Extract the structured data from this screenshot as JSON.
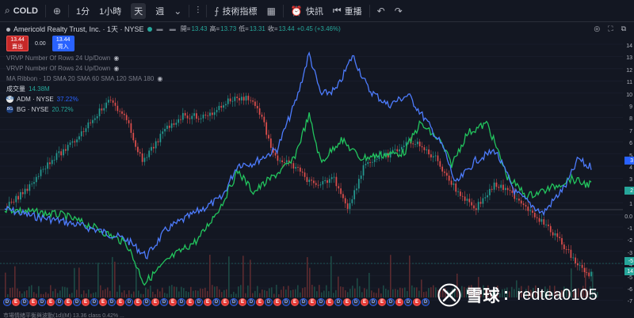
{
  "toolbar": {
    "symbol": "COLD",
    "interval_1m": "1分",
    "interval_1h": "1小時",
    "interval_1d": "天",
    "interval_1w": "週",
    "indicators": "技術指標",
    "snapshot": "快訊",
    "replay": "重播"
  },
  "legend": {
    "title": "Americold Realty Trust, Inc. · 1天 · NYSE",
    "open_label": "開=",
    "open": "13.43",
    "high_label": "高=",
    "high": "13.73",
    "low_label": "低=",
    "low": "13.31",
    "close_label": "收=",
    "close": "13.44",
    "change": "+0.45 (+3.46%)",
    "sell_price": "13.44",
    "sell_label": "賣出",
    "spread": "0.00",
    "buy_price": "13.44",
    "buy_label": "買入",
    "vrvp1": "VRVP Number Of Rows 24 Up/Down",
    "vrvp2": "VRVP Number Of Rows 24 Up/Down",
    "ma_ribbon": "MA Ribbon · 1D SMA 20 SMA 60 SMA 120 SMA 180",
    "volume_label": "成交量",
    "volume": "14.38M",
    "compare": [
      {
        "logo": "ADM",
        "name": "ADM · NYSE",
        "value": "37.22%"
      },
      {
        "logo": "BG",
        "name": "BG · NYSE",
        "value": "20.72%"
      }
    ]
  },
  "scale": {
    "labels": [
      "14",
      "13",
      "12",
      "11",
      "10",
      "9",
      "8",
      "7",
      "6",
      "5",
      "4",
      "3",
      "2",
      "1",
      "0.0",
      "-1",
      "-2",
      "-3",
      "-4",
      "-5",
      "-6",
      "-7"
    ],
    "tags": [
      {
        "text": "3",
        "color": "#2962ff"
      },
      {
        "text": "2",
        "color": "#26a69a"
      },
      {
        "text": "-5",
        "color": "#26a69a"
      },
      {
        "text": "14",
        "color": "#26a69a"
      }
    ]
  },
  "events": [
    "D",
    "E",
    "D",
    "E",
    "D",
    "E",
    "D",
    "E",
    "D",
    "E",
    "D",
    "E",
    "D",
    "E",
    "D",
    "E",
    "D",
    "E",
    "D",
    "E",
    "D",
    "E",
    "D",
    "E",
    "D",
    "E",
    "D",
    "E",
    "D",
    "E",
    "D",
    "E",
    "D",
    "E",
    "D",
    "E",
    "D",
    "E",
    "D",
    "E",
    "D",
    "E",
    "D",
    "E",
    "D",
    "E",
    "D",
    "E",
    "D"
  ],
  "watermark": {
    "brand": "雪球",
    "separator": ":",
    "handle": "redtea0105"
  },
  "bottom_text": "市場情緒平衡與波動(1d)(M) 13.36  class  0.42%  ...",
  "colors": {
    "background": "#131722",
    "adm": "#4d7cfe",
    "bg": "#22c55e",
    "up": "#26a69a",
    "down": "#ef5350"
  }
}
